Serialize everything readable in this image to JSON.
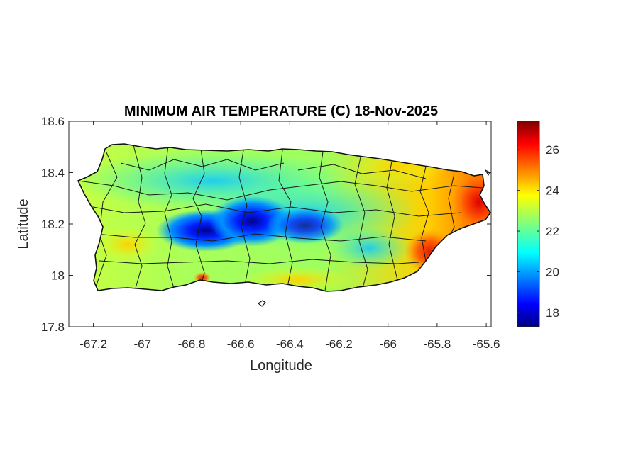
{
  "chart_data": {
    "type": "heatmap",
    "title": "MINIMUM AIR TEMPERATURE (C) 18-Nov-2025",
    "xlabel": "Longitude",
    "ylabel": "Latitude",
    "xlim": [
      -67.3,
      -65.58
    ],
    "ylim": [
      17.8,
      18.6
    ],
    "x_ticks": [
      -67.2,
      -67,
      -66.8,
      -66.6,
      -66.4,
      -66.2,
      -66,
      -65.8,
      -65.6
    ],
    "x_tick_labels": [
      "-67.2",
      "-67",
      "-66.8",
      "-66.6",
      "-66.4",
      "-66.2",
      "-66",
      "-65.8",
      "-65.6"
    ],
    "y_ticks": [
      17.8,
      18,
      18.2,
      18.4,
      18.6
    ],
    "y_tick_labels": [
      "17.8",
      "18",
      "18.2",
      "18.4",
      "18.6"
    ],
    "colorbar": {
      "min": 17.3,
      "max": 27.4,
      "ticks": [
        18,
        20,
        22,
        24,
        26
      ],
      "tick_labels": [
        "18",
        "20",
        "22",
        "24",
        "26"
      ],
      "colormap": "jet"
    },
    "grid": false,
    "colors": {
      "coast": "#111111",
      "municipality_lines": "#1a1a1a",
      "axes": "#262626"
    }
  }
}
